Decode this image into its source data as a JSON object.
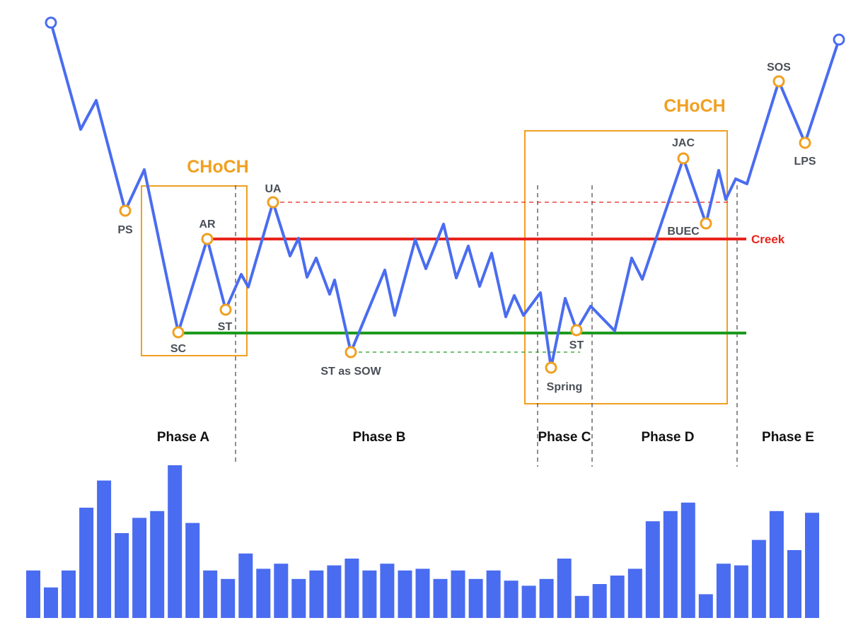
{
  "colors": {
    "price_line": "#4a6cf0",
    "point_stroke": "#f0a020",
    "box": "#f0a020",
    "creek": "#e8231c",
    "support": "#1d9a1d",
    "volume": "#4a6cf0",
    "label": "#4a4f57"
  },
  "choch_labels": {
    "left": "CHoCH",
    "right": "CHoCH"
  },
  "creek_label": "Creek",
  "points": {
    "ps": "PS",
    "sc": "SC",
    "ar": "AR",
    "st_a": "ST",
    "ua": "UA",
    "st_sow": "ST as SOW",
    "spring": "Spring",
    "st_c": "ST",
    "jac": "JAC",
    "buec": "BUEC",
    "sos": "SOS",
    "lps": "LPS"
  },
  "phases": {
    "a": "Phase A",
    "b": "Phase B",
    "c": "Phase C",
    "d": "Phase D",
    "e": "Phase E"
  },
  "volume_bars": [
    0.28,
    0.18,
    0.28,
    0.65,
    0.81,
    0.5,
    0.59,
    0.63,
    0.9,
    0.56,
    0.28,
    0.23,
    0.38,
    0.29,
    0.32,
    0.23,
    0.28,
    0.31,
    0.35,
    0.28,
    0.32,
    0.28,
    0.29,
    0.23,
    0.28,
    0.23,
    0.28,
    0.22,
    0.19,
    0.23,
    0.35,
    0.13,
    0.2,
    0.25,
    0.29,
    0.57,
    0.63,
    0.68,
    0.14,
    0.32,
    0.31,
    0.46,
    0.63,
    0.4,
    0.62
  ]
}
